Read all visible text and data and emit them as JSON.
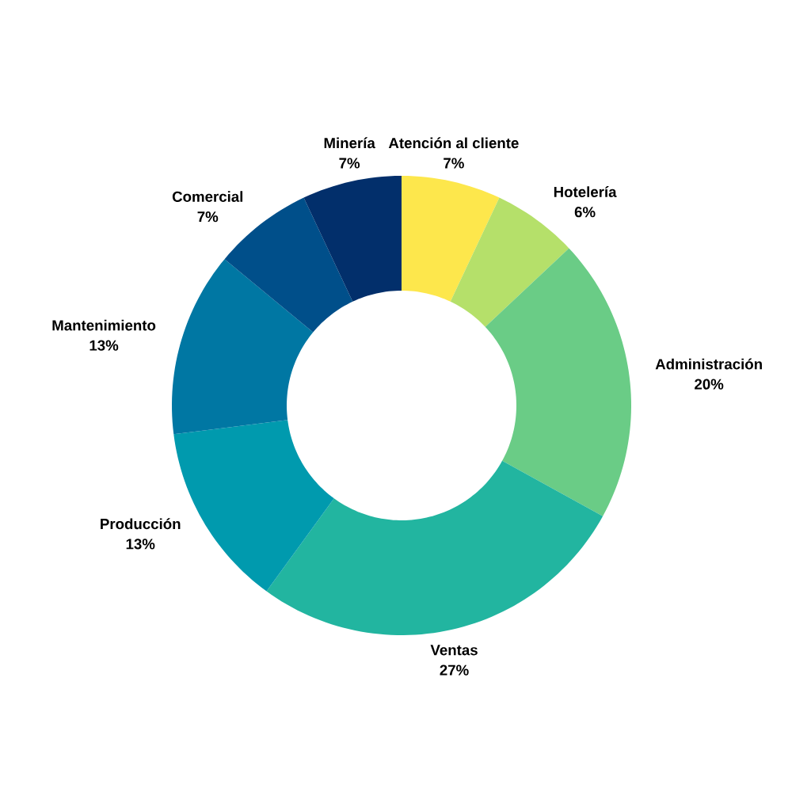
{
  "chart_data": {
    "type": "donut",
    "categories": [
      "Atención al cliente",
      "Hotelería",
      "Administración",
      "Ventas",
      "Producción",
      "Mantenimiento",
      "Comercial",
      "Minería"
    ],
    "values": [
      7,
      6,
      20,
      27,
      13,
      13,
      7,
      7
    ],
    "value_labels": [
      "7%",
      "6%",
      "20%",
      "27%",
      "13%",
      "13%",
      "7%",
      "7%"
    ],
    "colors": [
      "#fde74c",
      "#b5e06a",
      "#6acc86",
      "#22b5a0",
      "#009aae",
      "#0077a3",
      "#004f8a",
      "#022f6b"
    ]
  }
}
